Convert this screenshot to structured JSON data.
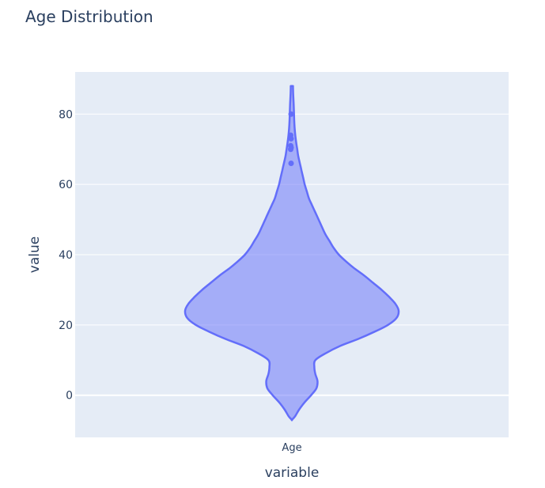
{
  "chart_data": {
    "type": "violin",
    "title": "Age Distribution",
    "xlabel": "variable",
    "ylabel": "value",
    "categories": [
      "Age"
    ],
    "ylim": [
      -12,
      92
    ],
    "yticks": [
      0,
      20,
      40,
      60,
      80
    ],
    "grid": true,
    "legend": "none",
    "series": [
      {
        "category": "Age",
        "density_profile": [
          [
            88,
            0.01
          ],
          [
            86,
            0.012
          ],
          [
            84,
            0.015
          ],
          [
            82,
            0.018
          ],
          [
            80,
            0.02
          ],
          [
            78,
            0.022
          ],
          [
            76,
            0.026
          ],
          [
            74,
            0.032
          ],
          [
            72,
            0.04
          ],
          [
            70,
            0.05
          ],
          [
            68,
            0.06
          ],
          [
            66,
            0.075
          ],
          [
            64,
            0.09
          ],
          [
            62,
            0.105
          ],
          [
            60,
            0.12
          ],
          [
            58,
            0.14
          ],
          [
            56,
            0.16
          ],
          [
            54,
            0.19
          ],
          [
            52,
            0.22
          ],
          [
            50,
            0.25
          ],
          [
            48,
            0.28
          ],
          [
            46,
            0.31
          ],
          [
            44,
            0.35
          ],
          [
            42,
            0.39
          ],
          [
            40,
            0.44
          ],
          [
            38,
            0.51
          ],
          [
            36,
            0.59
          ],
          [
            34,
            0.68
          ],
          [
            32,
            0.76
          ],
          [
            30,
            0.84
          ],
          [
            28,
            0.91
          ],
          [
            26,
            0.97
          ],
          [
            24,
            1.0
          ],
          [
            22,
            0.98
          ],
          [
            20,
            0.9
          ],
          [
            18,
            0.77
          ],
          [
            16,
            0.62
          ],
          [
            14,
            0.45
          ],
          [
            12,
            0.32
          ],
          [
            10,
            0.22
          ],
          [
            8,
            0.21
          ],
          [
            6,
            0.22
          ],
          [
            4,
            0.24
          ],
          [
            2,
            0.23
          ],
          [
            0,
            0.18
          ],
          [
            -2,
            0.12
          ],
          [
            -4,
            0.07
          ],
          [
            -6,
            0.03
          ],
          [
            -7,
            0.0
          ]
        ],
        "outliers": [
          80,
          74,
          73,
          71,
          70.5,
          70,
          66
        ]
      }
    ],
    "colors": {
      "violin_line": "#636efa",
      "violin_fill": "rgba(99,110,250,0.5)",
      "plot_bg": "#e5ecf6",
      "grid": "#ffffff",
      "text": "#2a3f5f"
    }
  }
}
